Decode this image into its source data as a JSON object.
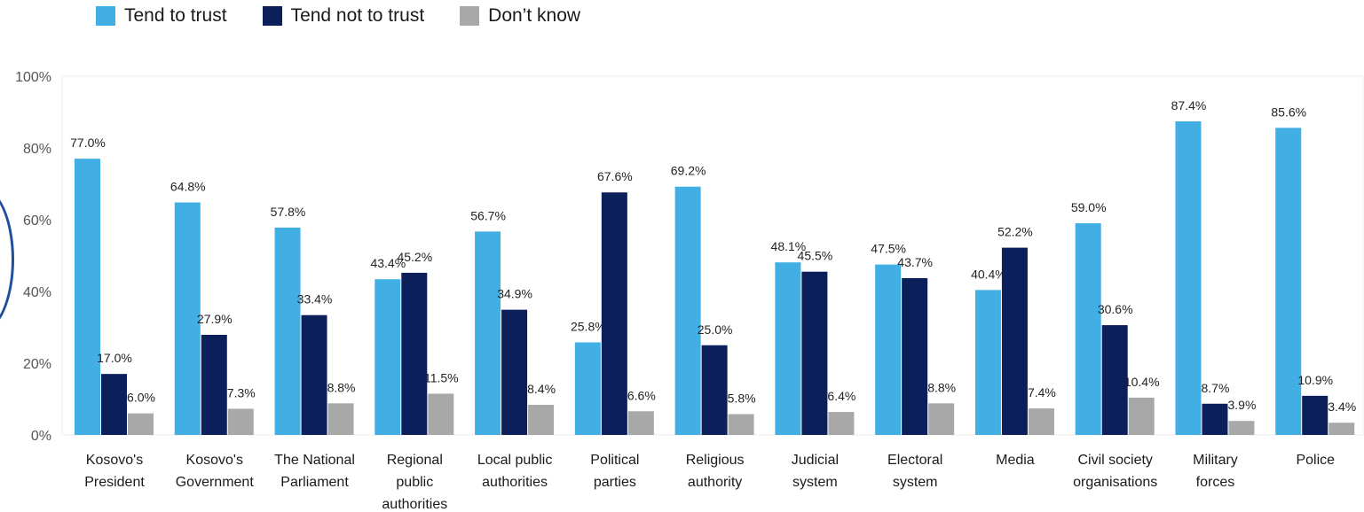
{
  "legend": [
    {
      "label": "Tend to trust",
      "color": "#41aee4"
    },
    {
      "label": "Tend not to trust",
      "color": "#0b1f5b"
    },
    {
      "label": "Don’t know",
      "color": "#a8a8a8"
    }
  ],
  "chart_data": {
    "type": "bar",
    "categories": [
      [
        "Kosovo's",
        "President"
      ],
      [
        "Kosovo's",
        "Government"
      ],
      [
        "The National",
        "Parliament"
      ],
      [
        "Regional",
        "public",
        "authorities"
      ],
      [
        "Local public",
        "authorities"
      ],
      [
        "Political",
        "parties"
      ],
      [
        "Religious",
        "authority"
      ],
      [
        "Judicial",
        "system"
      ],
      [
        "Electoral",
        "system"
      ],
      [
        "Media"
      ],
      [
        "Civil society",
        "organisations"
      ],
      [
        "Military",
        "forces"
      ],
      [
        "Police"
      ]
    ],
    "series": [
      {
        "name": "Tend to trust",
        "color": "#41aee4",
        "values": [
          77.0,
          64.8,
          57.8,
          43.4,
          56.7,
          25.8,
          69.2,
          48.1,
          47.5,
          40.4,
          59.0,
          87.4,
          85.6
        ],
        "labels": [
          "77.0%",
          "64.8%",
          "57.8%",
          "43.4%",
          "56.7%",
          "25.8%",
          "69.2%",
          "48.1%",
          "47.5%",
          "40.4%",
          "59.0%",
          "87.4%",
          "85.6%"
        ]
      },
      {
        "name": "Tend not to trust",
        "color": "#0b1f5b",
        "values": [
          17.0,
          27.9,
          33.4,
          45.2,
          34.9,
          67.6,
          25.0,
          45.5,
          43.7,
          52.2,
          30.6,
          8.7,
          10.9
        ],
        "labels": [
          "17.0%",
          "27.9%",
          "33.4%",
          "45.2%",
          "34.9%",
          "67.6%",
          "25.0%",
          "45.5%",
          "43.7%",
          "52.2%",
          "30.6%",
          "8.7%",
          "10.9%"
        ]
      },
      {
        "name": "Don’t know",
        "color": "#a8a8a8",
        "values": [
          6.0,
          7.3,
          8.8,
          11.5,
          8.4,
          6.6,
          5.8,
          6.4,
          8.8,
          7.4,
          10.4,
          3.9,
          3.4
        ],
        "labels": [
          "6.0%",
          "7.3%",
          "8.8%",
          "11.5%",
          "8.4%",
          "6.6%",
          "5.8%",
          "6.4%",
          "8.8%",
          "7.4%",
          "10.4%",
          "3.9%",
          "3.4%"
        ]
      }
    ],
    "yticks": [
      "0%",
      "20%",
      "40%",
      "60%",
      "80%",
      "100%"
    ],
    "ylim": [
      0,
      100
    ],
    "legend_position": "top-left",
    "grid": false
  }
}
